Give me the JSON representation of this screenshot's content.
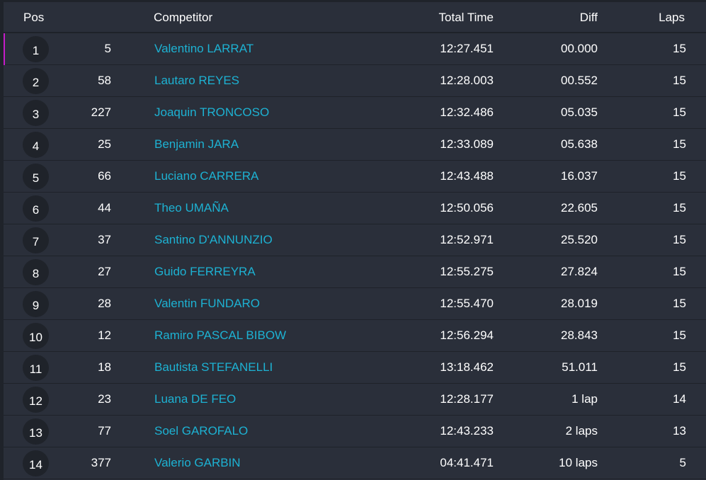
{
  "header": {
    "pos": "Pos",
    "competitor": "Competitor",
    "total_time": "Total Time",
    "diff": "Diff",
    "laps": "Laps"
  },
  "accent_color": "#c41cc8",
  "link_color": "#1db2d3",
  "rows": [
    {
      "pos": "1",
      "number": "5",
      "name": "Valentino LARRAT",
      "time": "12:27.451",
      "diff": "00.000",
      "laps": "15"
    },
    {
      "pos": "2",
      "number": "58",
      "name": "Lautaro REYES",
      "time": "12:28.003",
      "diff": "00.552",
      "laps": "15"
    },
    {
      "pos": "3",
      "number": "227",
      "name": "Joaquin TRONCOSO",
      "time": "12:32.486",
      "diff": "05.035",
      "laps": "15"
    },
    {
      "pos": "4",
      "number": "25",
      "name": "Benjamin JARA",
      "time": "12:33.089",
      "diff": "05.638",
      "laps": "15"
    },
    {
      "pos": "5",
      "number": "66",
      "name": "Luciano CARRERA",
      "time": "12:43.488",
      "diff": "16.037",
      "laps": "15"
    },
    {
      "pos": "6",
      "number": "44",
      "name": "Theo UMAÑA",
      "time": "12:50.056",
      "diff": "22.605",
      "laps": "15"
    },
    {
      "pos": "7",
      "number": "37",
      "name": "Santino D'ANNUNZIO",
      "time": "12:52.971",
      "diff": "25.520",
      "laps": "15"
    },
    {
      "pos": "8",
      "number": "27",
      "name": "Guido FERREYRA",
      "time": "12:55.275",
      "diff": "27.824",
      "laps": "15"
    },
    {
      "pos": "9",
      "number": "28",
      "name": "Valentin FUNDARO",
      "time": "12:55.470",
      "diff": "28.019",
      "laps": "15"
    },
    {
      "pos": "10",
      "number": "12",
      "name": "Ramiro PASCAL BIBOW",
      "time": "12:56.294",
      "diff": "28.843",
      "laps": "15"
    },
    {
      "pos": "11",
      "number": "18",
      "name": "Bautista STEFANELLI",
      "time": "13:18.462",
      "diff": "51.011",
      "laps": "15"
    },
    {
      "pos": "12",
      "number": "23",
      "name": "Luana DE FEO",
      "time": "12:28.177",
      "diff": "1 lap",
      "laps": "14"
    },
    {
      "pos": "13",
      "number": "77",
      "name": "Soel GAROFALO",
      "time": "12:43.233",
      "diff": "2 laps",
      "laps": "13"
    },
    {
      "pos": "14",
      "number": "377",
      "name": "Valerio GARBIN",
      "time": "04:41.471",
      "diff": "10 laps",
      "laps": "5"
    }
  ]
}
